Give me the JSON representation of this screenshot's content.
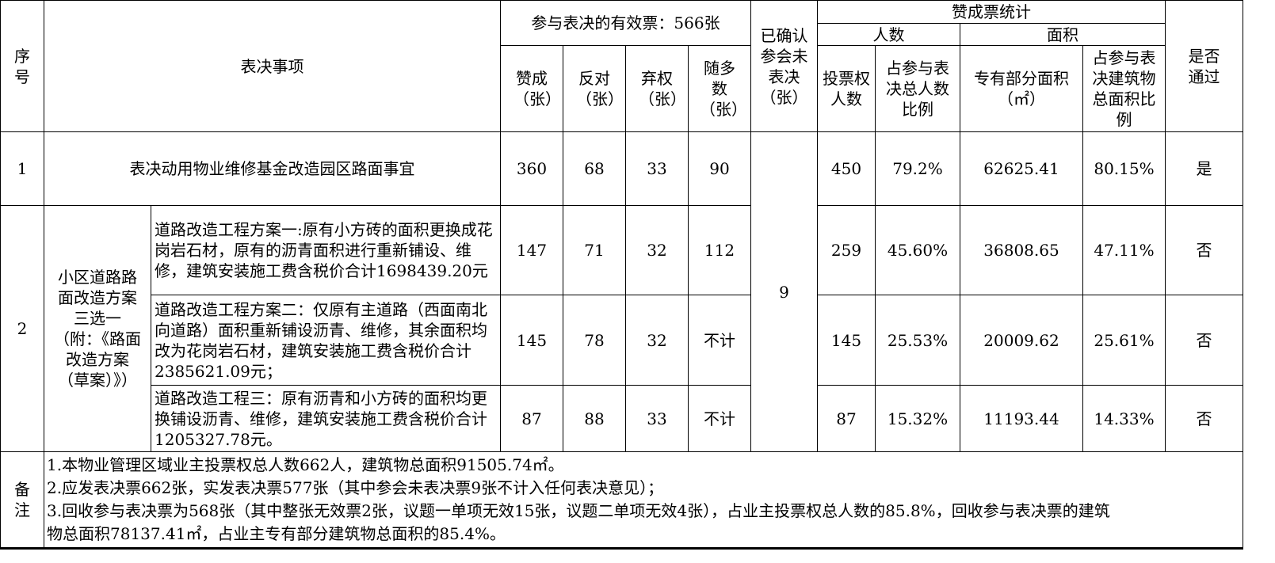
{
  "header": {
    "seq": "序号",
    "item": "表决事项",
    "valid_votes": "参与表决的有效票：566张",
    "approve": "赞成（张）",
    "oppose": "反对（张）",
    "abstain": "弃权（张）",
    "follow_majority": "随多数（张）",
    "confirmed_not_voted": "已确认参会未表决（张）",
    "approve_stats": "赞成票统计",
    "people": "人数",
    "area": "面积",
    "voter_count": "投票权人数",
    "people_ratio": "占参与表决总人数比例",
    "exclusive_area": "专有部分面积（㎡）",
    "area_ratio": "占参与表决建筑物总面积比例",
    "passed": "是否通过"
  },
  "confirmed_not_voted_value": "9",
  "rows": [
    {
      "seq": "1",
      "item": "表决动用物业维修基金改造园区路面事宜",
      "approve": "360",
      "oppose": "68",
      "abstain": "33",
      "follow": "90",
      "voters": "450",
      "people_ratio": "79.2%",
      "area": "62625.41",
      "area_ratio": "80.15%",
      "passed": "是"
    }
  ],
  "group": {
    "seq": "2",
    "title": "小区道路路面改造方案三选一（附：《路面改造方案（草案）》）",
    "plans": [
      {
        "item": "道路改造工程方案一:原有小方砖的面积更换成花岗岩石材，原有的沥青面积进行重新铺设、维修，建筑安装施工费含税价合计1698439.20元",
        "approve": "147",
        "oppose": "71",
        "abstain": "32",
        "follow": "112",
        "voters": "259",
        "people_ratio": "45.60%",
        "area": "36808.65",
        "area_ratio": "47.11%",
        "passed": "否"
      },
      {
        "item": "道路改造工程方案二：仅原有主道路（西面南北向道路）面积重新铺设沥青、维修，其余面积均改为花岗岩石材，建筑安装施工费含税价合计2385621.09元；",
        "approve": "145",
        "oppose": "78",
        "abstain": "32",
        "follow": "不计",
        "voters": "145",
        "people_ratio": "25.53%",
        "area": "20009.62",
        "area_ratio": "25.61%",
        "passed": "否"
      },
      {
        "item": "道路改造工程三：原有沥青和小方砖的面积均更换铺设沥青、维修，建筑安装施工费含税价合计1205327.78元。",
        "approve": "87",
        "oppose": "88",
        "abstain": "33",
        "follow": "不计",
        "voters": "87",
        "people_ratio": "15.32%",
        "area": "11193.44",
        "area_ratio": "14.33%",
        "passed": "否"
      }
    ]
  },
  "notes": {
    "label": "备注",
    "lines": [
      "1.本物业管理区域业主投票权总人数662人，建筑物总面积91505.74㎡。",
      "2.应发表决票662张，实发表决票577张（其中参会未表决票9张不计入任何表决意见）；",
      "3.回收参与表决票为568张（其中整张无效票2张，议题一单项无效15张，议题二单项无效4张），占业主投票权总人数的85.8%，回收参与表决票的建筑",
      "物总面积78137.41㎡，占业主专有部分建筑物总面积的85.4%。"
    ]
  }
}
